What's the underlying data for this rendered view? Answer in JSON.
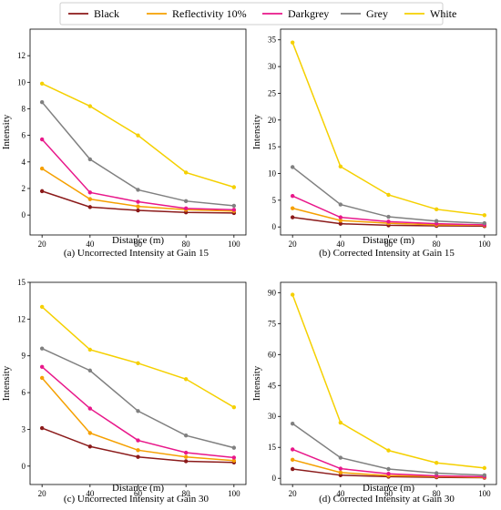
{
  "legend": [
    {
      "name": "Black",
      "color": "#8b1a1a"
    },
    {
      "name": "Reflectivity 10%",
      "color": "#f5a000"
    },
    {
      "name": "Darkgrey",
      "color": "#e8178a"
    },
    {
      "name": "Grey",
      "color": "#808080"
    },
    {
      "name": "White",
      "color": "#f5d000"
    }
  ],
  "chart_data": [
    {
      "type": "line",
      "caption": "(a) Uncorrected Intensity at Gain 15",
      "xlabel": "Distance (m)",
      "ylabel": "Intensity",
      "x": [
        20,
        40,
        60,
        80,
        100
      ],
      "xlim": [
        15,
        105
      ],
      "ylim": [
        -1.5,
        14
      ],
      "yticks": [
        0,
        2,
        4,
        6,
        8,
        10,
        12
      ],
      "xticks": [
        20,
        40,
        60,
        80,
        100
      ],
      "series": [
        {
          "name": "Black",
          "color": "#8b1a1a",
          "values": [
            1.8,
            0.6,
            0.35,
            0.2,
            0.15
          ]
        },
        {
          "name": "Reflectivity 10%",
          "color": "#f5a000",
          "values": [
            3.5,
            1.2,
            0.65,
            0.4,
            0.3
          ]
        },
        {
          "name": "Darkgrey",
          "color": "#e8178a",
          "values": [
            5.7,
            1.7,
            1.0,
            0.5,
            0.4
          ]
        },
        {
          "name": "Grey",
          "color": "#808080",
          "values": [
            8.5,
            4.2,
            1.9,
            1.05,
            0.7
          ]
        },
        {
          "name": "White",
          "color": "#f5d000",
          "values": [
            9.9,
            8.2,
            6.0,
            3.2,
            2.1
          ]
        }
      ]
    },
    {
      "type": "line",
      "caption": "(b) Corrected Intensity at Gain 15",
      "xlabel": "Distance (m)",
      "ylabel": "Intensity",
      "x": [
        20,
        40,
        60,
        80,
        100
      ],
      "xlim": [
        15,
        105
      ],
      "ylim": [
        -1.5,
        37
      ],
      "yticks": [
        0,
        5,
        10,
        15,
        20,
        25,
        30,
        35
      ],
      "xticks": [
        20,
        40,
        60,
        80,
        100
      ],
      "series": [
        {
          "name": "Black",
          "color": "#8b1a1a",
          "values": [
            1.8,
            0.6,
            0.3,
            0.2,
            0.15
          ]
        },
        {
          "name": "Reflectivity 10%",
          "color": "#f5a000",
          "values": [
            3.5,
            1.2,
            0.7,
            0.4,
            0.3
          ]
        },
        {
          "name": "Darkgrey",
          "color": "#e8178a",
          "values": [
            5.8,
            1.8,
            1.0,
            0.6,
            0.4
          ]
        },
        {
          "name": "Grey",
          "color": "#808080",
          "values": [
            11.2,
            4.2,
            1.9,
            1.1,
            0.7
          ]
        },
        {
          "name": "White",
          "color": "#f5d000",
          "values": [
            34.5,
            11.3,
            6.0,
            3.3,
            2.2
          ]
        }
      ]
    },
    {
      "type": "line",
      "caption": "(c) Uncorrected Intensity at Gain 30",
      "xlabel": "Distance (m)",
      "ylabel": "Intensity",
      "x": [
        20,
        40,
        60,
        80,
        100
      ],
      "xlim": [
        15,
        105
      ],
      "ylim": [
        -1.5,
        15
      ],
      "yticks": [
        0,
        3,
        6,
        9,
        12,
        15
      ],
      "xticks": [
        20,
        40,
        60,
        80,
        100
      ],
      "series": [
        {
          "name": "Black",
          "color": "#8b1a1a",
          "values": [
            3.1,
            1.6,
            0.75,
            0.4,
            0.3
          ]
        },
        {
          "name": "Reflectivity 10%",
          "color": "#f5a000",
          "values": [
            7.2,
            2.7,
            1.3,
            0.75,
            0.45
          ]
        },
        {
          "name": "Darkgrey",
          "color": "#e8178a",
          "values": [
            8.1,
            4.7,
            2.1,
            1.1,
            0.7
          ]
        },
        {
          "name": "Grey",
          "color": "#808080",
          "values": [
            9.6,
            7.8,
            4.5,
            2.5,
            1.5
          ]
        },
        {
          "name": "White",
          "color": "#f5d000",
          "values": [
            13.0,
            9.5,
            8.4,
            7.1,
            4.8
          ]
        }
      ]
    },
    {
      "type": "line",
      "caption": "(d) Corrected Intensity at Gain 30",
      "xlabel": "Distance (m)",
      "ylabel": "Intensity",
      "x": [
        20,
        40,
        60,
        80,
        100
      ],
      "xlim": [
        15,
        105
      ],
      "ylim": [
        -3,
        95
      ],
      "yticks": [
        0,
        15,
        30,
        45,
        60,
        75,
        90
      ],
      "xticks": [
        20,
        40,
        60,
        80,
        100
      ],
      "series": [
        {
          "name": "Black",
          "color": "#8b1a1a",
          "values": [
            4.5,
            1.5,
            0.8,
            0.5,
            0.3
          ]
        },
        {
          "name": "Reflectivity 10%",
          "color": "#f5a000",
          "values": [
            9.0,
            2.8,
            1.3,
            0.9,
            0.5
          ]
        },
        {
          "name": "Darkgrey",
          "color": "#e8178a",
          "values": [
            14.0,
            4.7,
            2.2,
            1.2,
            0.8
          ]
        },
        {
          "name": "Grey",
          "color": "#808080",
          "values": [
            26.5,
            10.0,
            4.5,
            2.5,
            1.5
          ]
        },
        {
          "name": "White",
          "color": "#f5d000",
          "values": [
            89.0,
            27.0,
            13.5,
            7.5,
            5.0
          ]
        }
      ]
    }
  ]
}
